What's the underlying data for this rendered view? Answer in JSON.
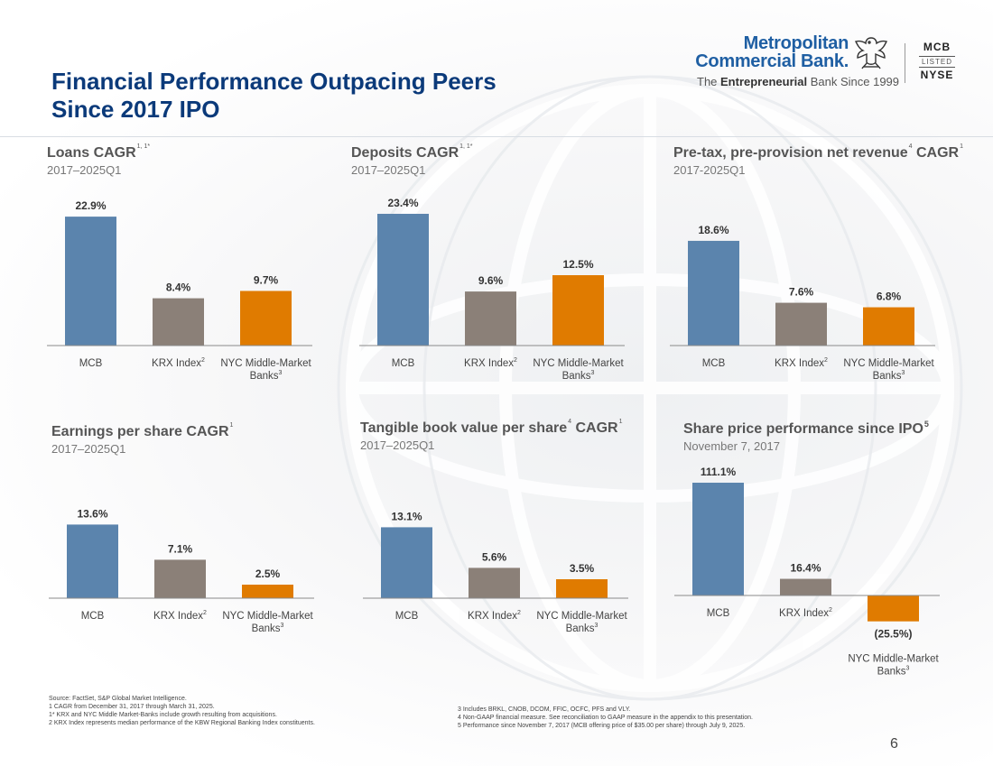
{
  "page": {
    "title_line1": "Financial Performance Outpacing Peers",
    "title_line2": "Since 2017 IPO",
    "page_number": "6"
  },
  "logo": {
    "name_line1": "Metropolitan",
    "name_line2": "Commercial Bank.",
    "tagline_pre": "The ",
    "tagline_bold": "Entrepreneurial",
    "tagline_post": " Bank Since 1999",
    "ticker": "MCB",
    "listed": "LISTED",
    "exchange": "NYSE"
  },
  "colors": {
    "mcb": "#5b84ad",
    "krx": "#8b8078",
    "nyc": "#e07b00",
    "title_blue": "#0b3a7a"
  },
  "chart_data": [
    {
      "type": "bar",
      "title": "Loans CAGR",
      "title_sup": "1, 1*",
      "subtitle": "2017–2025Q1",
      "categories": [
        {
          "label": "MCB",
          "sup": ""
        },
        {
          "label": "KRX Index",
          "sup": "2"
        },
        {
          "label": "NYC Middle-Market",
          "label2": "Banks",
          "sup": "3"
        }
      ],
      "values": [
        22.9,
        8.4,
        9.7
      ],
      "value_labels": [
        "22.9%",
        "8.4%",
        "9.7%"
      ],
      "ylim": [
        0,
        25
      ]
    },
    {
      "type": "bar",
      "title": "Deposits CAGR",
      "title_sup": "1, 1*",
      "subtitle": "2017–2025Q1",
      "categories": [
        {
          "label": "MCB",
          "sup": ""
        },
        {
          "label": "KRX Index",
          "sup": "2"
        },
        {
          "label": "NYC Middle-Market",
          "label2": "Banks",
          "sup": "3"
        }
      ],
      "values": [
        23.4,
        9.6,
        12.5
      ],
      "value_labels": [
        "23.4%",
        "9.6%",
        "12.5%"
      ],
      "ylim": [
        0,
        25
      ]
    },
    {
      "type": "bar",
      "title": "Pre-tax, pre-provision net revenue",
      "title_mid_sup": "4",
      "title_tail": " CAGR",
      "title_sup": "1",
      "subtitle": "2017-2025Q1",
      "categories": [
        {
          "label": "MCB",
          "sup": ""
        },
        {
          "label": "KRX Index",
          "sup": "2"
        },
        {
          "label": "NYC Middle-Market",
          "label2": "Banks",
          "sup": "3"
        }
      ],
      "values": [
        18.6,
        7.6,
        6.8
      ],
      "value_labels": [
        "18.6%",
        "7.6%",
        "6.8%"
      ],
      "ylim": [
        0,
        25
      ]
    },
    {
      "type": "bar",
      "title": "Earnings per share CAGR",
      "title_sup": "1",
      "subtitle": "2017–2025Q1",
      "categories": [
        {
          "label": "MCB",
          "sup": ""
        },
        {
          "label": "KRX Index",
          "sup": "2"
        },
        {
          "label": "NYC Middle-Market",
          "label2": "Banks",
          "sup": "3"
        }
      ],
      "values": [
        13.6,
        7.1,
        2.5
      ],
      "value_labels": [
        "13.6%",
        "7.1%",
        "2.5%"
      ],
      "ylim": [
        0,
        15
      ]
    },
    {
      "type": "bar",
      "title": "Tangible book value per share",
      "title_mid_sup": "4",
      "title_tail": " CAGR",
      "title_sup": "1",
      "subtitle": "2017–2025Q1",
      "categories": [
        {
          "label": "MCB",
          "sup": ""
        },
        {
          "label": "KRX Index",
          "sup": "2"
        },
        {
          "label": "NYC Middle-Market",
          "label2": "Banks",
          "sup": "3"
        }
      ],
      "values": [
        13.1,
        5.6,
        3.5
      ],
      "value_labels": [
        "13.1%",
        "5.6%",
        "3.5%"
      ],
      "ylim": [
        0,
        15
      ]
    },
    {
      "type": "bar",
      "title": "Share price performance since IPO",
      "title_sup": "5",
      "subtitle": "November 7, 2017",
      "categories": [
        {
          "label": "MCB",
          "sup": ""
        },
        {
          "label": "KRX Index",
          "sup": "2"
        },
        {
          "label": "NYC Middle-Market",
          "label2": "Banks",
          "sup": "3"
        }
      ],
      "values": [
        111.1,
        16.4,
        -25.5
      ],
      "value_labels": [
        "111.1%",
        "16.4%",
        "(25.5%)"
      ],
      "ylim": [
        -30,
        120
      ]
    }
  ],
  "footnotes": {
    "left": [
      "Source: FactSet, S&P Global Market Intelligence.",
      "1   CAGR from December 31, 2017 through March 31, 2025.",
      "1* KRX and NYC Middle Market-Banks include growth resulting from acquisitions.",
      "2  KRX Index represents median performance of the KBW Regional Banking Index constituents."
    ],
    "right": [
      "3 Includes BRKL, CNOB, DCOM, FFIC, OCFC, PFS and VLY.",
      "4 Non-GAAP financial measure. See reconciliation to GAAP measure in the appendix to this presentation.",
      "5 Performance since November 7, 2017 (MCB offering price of $35.00 per share) through July 9, 2025."
    ]
  }
}
